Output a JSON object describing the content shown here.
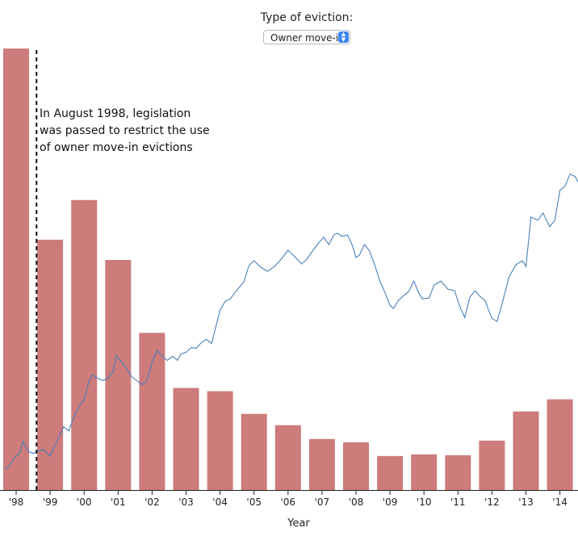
{
  "control": {
    "label": "Type of eviction:",
    "selected": "Owner move-in"
  },
  "colors": {
    "bar": "#cd7b7b",
    "line": "#4a7fb8",
    "annotation_line": "#111111"
  },
  "chart_data": {
    "type": "bar",
    "title": "",
    "xlabel": "Year",
    "ylabel": "",
    "categories": [
      "'98",
      "'99",
      "'00",
      "'01",
      "'02",
      "'03",
      "'04",
      "'05",
      "'06",
      "'07",
      "'08",
      "'09",
      "'10",
      "'11",
      "'12",
      "'13",
      "'14"
    ],
    "series": [
      {
        "type": "bar",
        "values": [
          545,
          309,
          358,
          284,
          194,
          126,
          122,
          94,
          80,
          63,
          59,
          42,
          44,
          43,
          61,
          97,
          112
        ]
      },
      {
        "type": "line",
        "points": [
          [
            1997.67,
            25
          ],
          [
            1997.8,
            30
          ],
          [
            1997.95,
            40
          ],
          [
            1998.1,
            45
          ],
          [
            1998.2,
            60
          ],
          [
            1998.35,
            48
          ],
          [
            1998.5,
            45
          ],
          [
            1998.65,
            48
          ],
          [
            1998.8,
            50
          ],
          [
            1999.0,
            42
          ],
          [
            1999.2,
            60
          ],
          [
            1999.4,
            78
          ],
          [
            1999.55,
            73
          ],
          [
            1999.7,
            90
          ],
          [
            1999.85,
            103
          ],
          [
            2000.0,
            112
          ],
          [
            2000.15,
            135
          ],
          [
            2000.25,
            142
          ],
          [
            2000.4,
            138
          ],
          [
            2000.55,
            135
          ],
          [
            2000.7,
            138
          ],
          [
            2000.85,
            146
          ],
          [
            2000.95,
            166
          ],
          [
            2001.1,
            158
          ],
          [
            2001.25,
            150
          ],
          [
            2001.4,
            140
          ],
          [
            2001.55,
            135
          ],
          [
            2001.7,
            130
          ],
          [
            2001.85,
            135
          ],
          [
            2002.0,
            158
          ],
          [
            2002.15,
            172
          ],
          [
            2002.3,
            165
          ],
          [
            2002.45,
            160
          ],
          [
            2002.6,
            165
          ],
          [
            2002.75,
            160
          ],
          [
            2002.85,
            168
          ],
          [
            2003.0,
            170
          ],
          [
            2003.15,
            176
          ],
          [
            2003.3,
            175
          ],
          [
            2003.45,
            182
          ],
          [
            2003.6,
            186
          ],
          [
            2003.75,
            181
          ],
          [
            2004.0,
            222
          ],
          [
            2004.15,
            233
          ],
          [
            2004.3,
            236
          ],
          [
            2004.5,
            247
          ],
          [
            2004.7,
            257
          ],
          [
            2004.85,
            277
          ],
          [
            2005.0,
            283
          ],
          [
            2005.2,
            275
          ],
          [
            2005.4,
            270
          ],
          [
            2005.6,
            276
          ],
          [
            2005.8,
            285
          ],
          [
            2006.0,
            296
          ],
          [
            2006.2,
            288
          ],
          [
            2006.4,
            279
          ],
          [
            2006.55,
            285
          ],
          [
            2006.75,
            297
          ],
          [
            2006.9,
            305
          ],
          [
            2007.05,
            312
          ],
          [
            2007.2,
            303
          ],
          [
            2007.35,
            315
          ],
          [
            2007.45,
            317
          ],
          [
            2007.6,
            313
          ],
          [
            2007.75,
            315
          ],
          [
            2007.9,
            301
          ],
          [
            2008.0,
            287
          ],
          [
            2008.1,
            290
          ],
          [
            2008.25,
            303
          ],
          [
            2008.4,
            295
          ],
          [
            2008.55,
            278
          ],
          [
            2008.7,
            258
          ],
          [
            2008.85,
            244
          ],
          [
            2009.0,
            228
          ],
          [
            2009.1,
            224
          ],
          [
            2009.25,
            234
          ],
          [
            2009.4,
            240
          ],
          [
            2009.55,
            245
          ],
          [
            2009.7,
            258
          ],
          [
            2009.85,
            243
          ],
          [
            2009.95,
            236
          ],
          [
            2010.15,
            237
          ],
          [
            2010.3,
            253
          ],
          [
            2010.5,
            258
          ],
          [
            2010.7,
            248
          ],
          [
            2010.9,
            246
          ],
          [
            2011.05,
            227
          ],
          [
            2011.2,
            213
          ],
          [
            2011.35,
            238
          ],
          [
            2011.5,
            246
          ],
          [
            2011.65,
            239
          ],
          [
            2011.8,
            234
          ],
          [
            2011.9,
            222
          ],
          [
            2012.0,
            212
          ],
          [
            2012.15,
            208
          ],
          [
            2012.3,
            230
          ],
          [
            2012.5,
            263
          ],
          [
            2012.7,
            278
          ],
          [
            2012.9,
            283
          ],
          [
            2013.0,
            276
          ],
          [
            2013.15,
            337
          ],
          [
            2013.35,
            333
          ],
          [
            2013.5,
            342
          ],
          [
            2013.7,
            325
          ],
          [
            2013.85,
            333
          ],
          [
            2014.0,
            370
          ],
          [
            2014.15,
            375
          ],
          [
            2014.3,
            390
          ],
          [
            2014.45,
            387
          ],
          [
            2014.6,
            375
          ]
        ]
      }
    ],
    "ylim": [
      0,
      575
    ],
    "xlim": [
      1997.67,
      2014.6
    ],
    "grid": false,
    "annotation": {
      "year": 1998.6,
      "lines": [
        "In August 1998, legislation",
        "was passed to restrict the use",
        "of owner move-in evictions"
      ]
    }
  }
}
